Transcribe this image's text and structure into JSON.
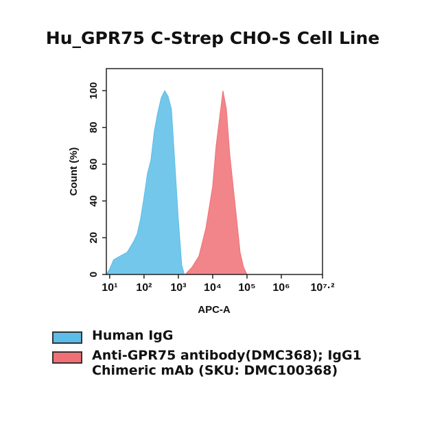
{
  "chart_data": {
    "type": "area",
    "title": "Hu_GPR75 C-Strep CHO-S Cell Line",
    "x_label": "APC-A",
    "y_label": "Count  (%)",
    "x_scale": "log",
    "xlim": [
      8,
      15848932
    ],
    "ylim": [
      0,
      112
    ],
    "xticks": [
      {
        "value": 10,
        "label": "10¹"
      },
      {
        "value": 100,
        "label": "10²"
      },
      {
        "value": 1000,
        "label": "10³"
      },
      {
        "value": 10000,
        "label": "10⁴"
      },
      {
        "value": 100000,
        "label": "10⁵"
      },
      {
        "value": 1000000,
        "label": "10⁶"
      },
      {
        "value": 15848932,
        "label": "10⁷·²"
      }
    ],
    "yticks": [
      0,
      20,
      40,
      60,
      80,
      100
    ],
    "series": [
      {
        "name": "Human IgG",
        "color": "#5bbde8",
        "x": [
          8,
          10,
          13,
          20,
          32,
          50,
          63,
          79,
          100,
          126,
          158,
          200,
          251,
          316,
          400,
          501,
          631,
          794,
          1000,
          1259,
          1500
        ],
        "values": [
          0,
          3,
          8,
          10,
          12,
          18,
          22,
          30,
          42,
          55,
          62,
          78,
          88,
          96,
          100,
          97,
          90,
          60,
          30,
          5,
          0
        ]
      },
      {
        "name": "Anti-GPR75 antibody(DMC368); IgG1 Chimeric mAb (SKU: DMC100368)",
        "color": "#f07075",
        "x": [
          1585,
          2512,
          3981,
          6310,
          10000,
          12589,
          15849,
          19953,
          25119,
          31623,
          50119,
          63096,
          79433,
          100000
        ],
        "values": [
          0,
          4,
          10,
          25,
          48,
          70,
          85,
          100,
          90,
          65,
          30,
          12,
          4,
          0
        ]
      }
    ]
  }
}
